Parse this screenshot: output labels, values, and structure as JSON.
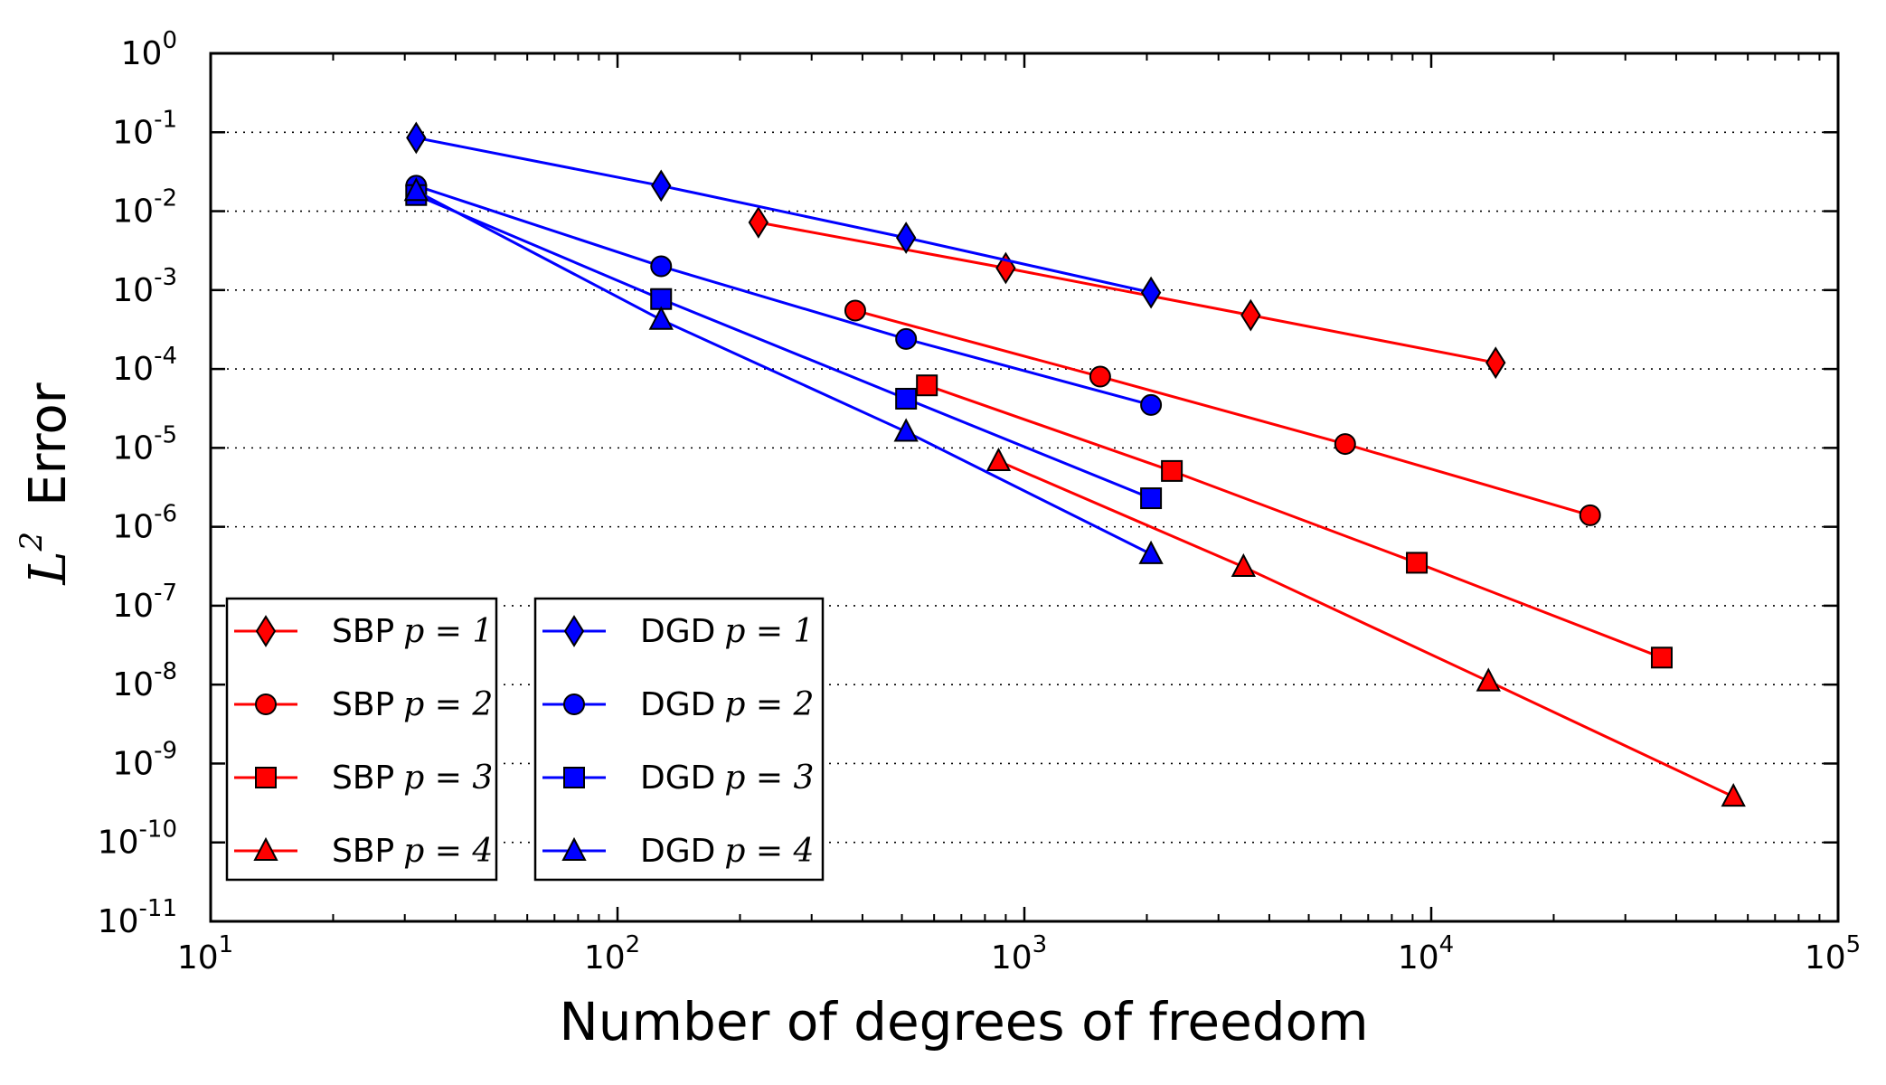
{
  "chart_data": {
    "type": "line",
    "xscale": "log",
    "yscale": "log",
    "xlabel": "Number of degrees of freedom",
    "ylabel": {
      "symbol": "L",
      "exponent": "2",
      "text": "Error"
    },
    "xlim": [
      10,
      100000
    ],
    "ylim": [
      1e-11,
      1
    ],
    "x_ticks": [
      {
        "value": 10,
        "base": "10",
        "exp": "1"
      },
      {
        "value": 100,
        "base": "10",
        "exp": "2"
      },
      {
        "value": 1000,
        "base": "10",
        "exp": "3"
      },
      {
        "value": 10000,
        "base": "10",
        "exp": "4"
      },
      {
        "value": 100000,
        "base": "10",
        "exp": "5"
      }
    ],
    "y_ticks": [
      {
        "value": 1,
        "base": "10",
        "exp": "0"
      },
      {
        "value": 0.1,
        "base": "10",
        "exp": "-1"
      },
      {
        "value": 0.01,
        "base": "10",
        "exp": "-2"
      },
      {
        "value": 0.001,
        "base": "10",
        "exp": "-3"
      },
      {
        "value": 0.0001,
        "base": "10",
        "exp": "-4"
      },
      {
        "value": 1e-05,
        "base": "10",
        "exp": "-5"
      },
      {
        "value": 1e-06,
        "base": "10",
        "exp": "-6"
      },
      {
        "value": 1e-07,
        "base": "10",
        "exp": "-7"
      },
      {
        "value": 1e-08,
        "base": "10",
        "exp": "-8"
      },
      {
        "value": 1e-09,
        "base": "10",
        "exp": "-9"
      },
      {
        "value": 1e-10,
        "base": "10",
        "exp": "-10"
      },
      {
        "value": 1e-11,
        "base": "10",
        "exp": "-11"
      }
    ],
    "grid": {
      "y": true,
      "x": false,
      "style": "dotted"
    },
    "series": [
      {
        "name": "SBP",
        "p": "p = 1",
        "color": "#ff0000",
        "marker": "diamond",
        "x": [
          222,
          900,
          3600,
          14400
        ],
        "y": [
          0.0072,
          0.0019,
          0.00048,
          0.00012
        ]
      },
      {
        "name": "SBP",
        "p": "p = 2",
        "color": "#ff0000",
        "marker": "circle",
        "x": [
          384,
          1536,
          6144,
          24576
        ],
        "y": [
          0.00055,
          8e-05,
          1.12e-05,
          1.4e-06
        ]
      },
      {
        "name": "SBP",
        "p": "p = 3",
        "color": "#ff0000",
        "marker": "square",
        "x": [
          576,
          2304,
          9216,
          36864
        ],
        "y": [
          6.2e-05,
          5.1e-06,
          3.5e-07,
          2.2e-08
        ]
      },
      {
        "name": "SBP",
        "p": "p = 4",
        "color": "#ff0000",
        "marker": "triangle",
        "x": [
          864,
          3456,
          13824,
          55296
        ],
        "y": [
          6.8e-06,
          3.1e-07,
          1.1e-08,
          3.8e-10
        ]
      },
      {
        "name": "DGD",
        "p": "p = 1",
        "color": "#0000ff",
        "marker": "diamond",
        "x": [
          32,
          128,
          512,
          2048
        ],
        "y": [
          0.085,
          0.021,
          0.0046,
          0.00093
        ]
      },
      {
        "name": "DGD",
        "p": "p = 2",
        "color": "#0000ff",
        "marker": "circle",
        "x": [
          32,
          128,
          512,
          2048
        ],
        "y": [
          0.021,
          0.002,
          0.00024,
          3.5e-05
        ]
      },
      {
        "name": "DGD",
        "p": "p = 3",
        "color": "#0000ff",
        "marker": "square",
        "x": [
          32,
          128,
          512,
          2048
        ],
        "y": [
          0.016,
          0.00077,
          4.2e-05,
          2.3e-06
        ]
      },
      {
        "name": "DGD",
        "p": "p = 4",
        "color": "#0000ff",
        "marker": "triangle",
        "x": [
          32,
          128,
          512,
          2048
        ],
        "y": [
          0.018,
          0.00042,
          1.6e-05,
          4.5e-07
        ]
      }
    ],
    "legend": [
      {
        "placement": "lower-left",
        "series_index": [
          0,
          1,
          2,
          3
        ]
      },
      {
        "placement": "lower-left-second",
        "series_index": [
          4,
          5,
          6,
          7
        ]
      }
    ]
  }
}
